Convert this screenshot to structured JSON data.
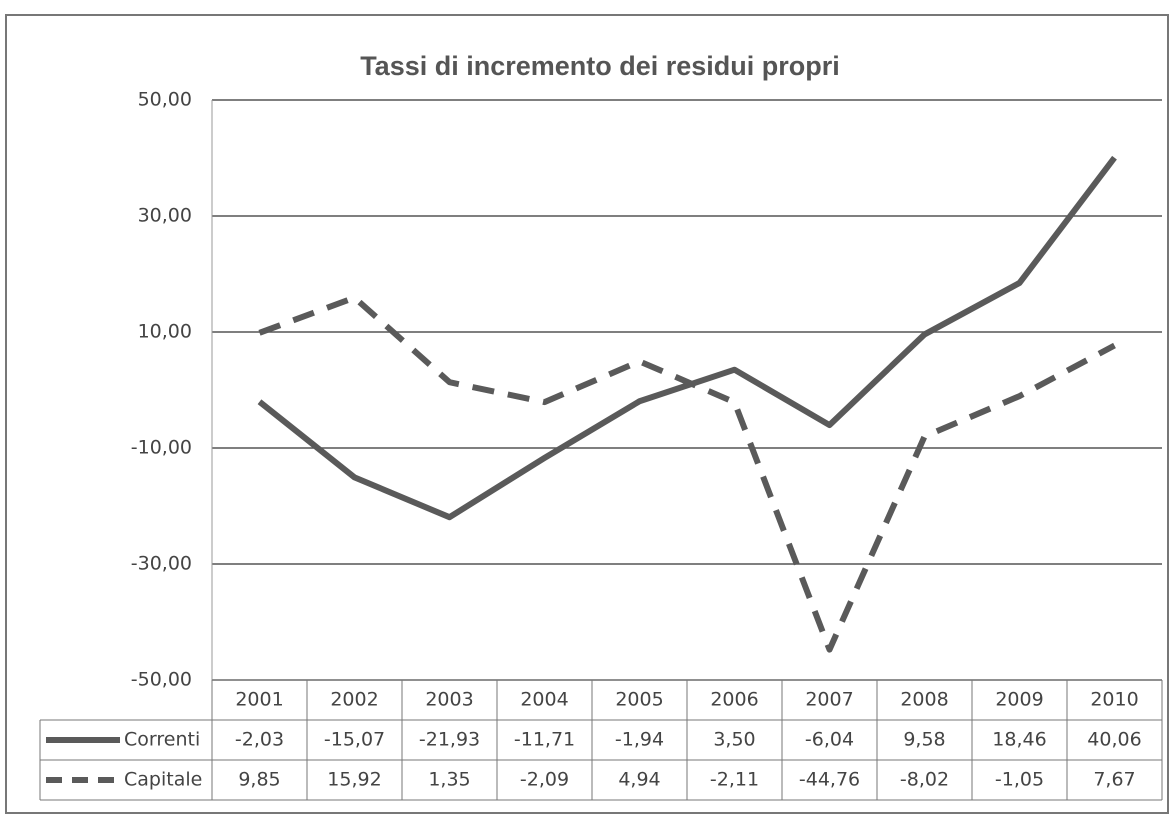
{
  "chart_data": {
    "type": "line",
    "title": "Tassi di incremento dei residui propri",
    "categories": [
      "2001",
      "2002",
      "2003",
      "2004",
      "2005",
      "2006",
      "2007",
      "2008",
      "2009",
      "2010"
    ],
    "series": [
      {
        "name": "Correnti",
        "color": "#5a5a5a",
        "dash": false,
        "values": [
          -2.03,
          -15.07,
          -21.93,
          -11.71,
          -1.94,
          3.5,
          -6.04,
          9.58,
          18.46,
          40.06
        ],
        "value_labels": [
          "-2,03",
          "-15,07",
          "-21,93",
          "-11,71",
          "-1,94",
          "3,50",
          "-6,04",
          "9,58",
          "18,46",
          "40,06"
        ]
      },
      {
        "name": "Capitale",
        "color": "#5a5a5a",
        "dash": true,
        "values": [
          9.85,
          15.92,
          1.35,
          -2.09,
          4.94,
          -2.11,
          -44.76,
          -8.02,
          -1.05,
          7.67
        ],
        "value_labels": [
          "9,85",
          "15,92",
          "1,35",
          "-2,09",
          "4,94",
          "-2,11",
          "-44,76",
          "-8,02",
          "-1,05",
          "7,67"
        ]
      }
    ],
    "ylim": [
      -50,
      50
    ],
    "yticks": [
      {
        "value": -50,
        "label": "-50,00"
      },
      {
        "value": -30,
        "label": "-30,00"
      },
      {
        "value": -10,
        "label": "-10,00"
      },
      {
        "value": 10,
        "label": "10,00"
      },
      {
        "value": 30,
        "label": "30,00"
      },
      {
        "value": 50,
        "label": "50,00"
      }
    ],
    "grid": true
  }
}
